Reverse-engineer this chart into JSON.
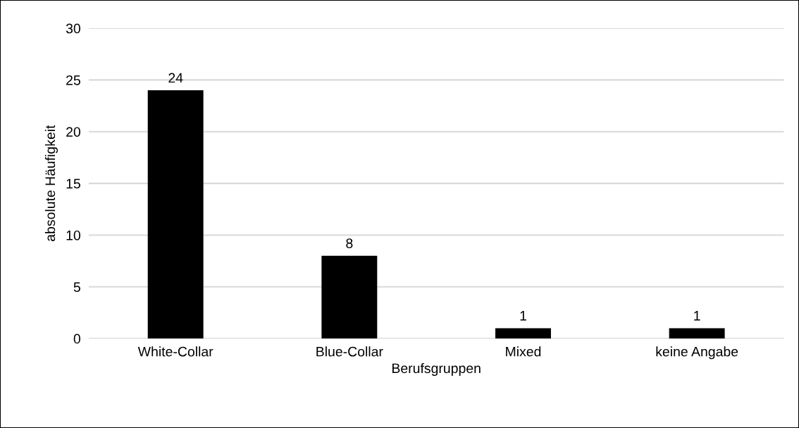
{
  "chart_data": {
    "type": "bar",
    "xlabel": "Berufsgruppen",
    "ylabel": "absolute Häufigkeit",
    "categories": [
      "White-Collar",
      "Blue-Collar",
      "Mixed",
      "keine Angabe"
    ],
    "values": [
      24,
      8,
      1,
      1
    ],
    "color": "#000000",
    "ylim": [
      0,
      30
    ],
    "yticks": [
      0,
      5,
      10,
      15,
      20,
      25,
      30
    ],
    "grid": "y",
    "data_labels": true
  }
}
